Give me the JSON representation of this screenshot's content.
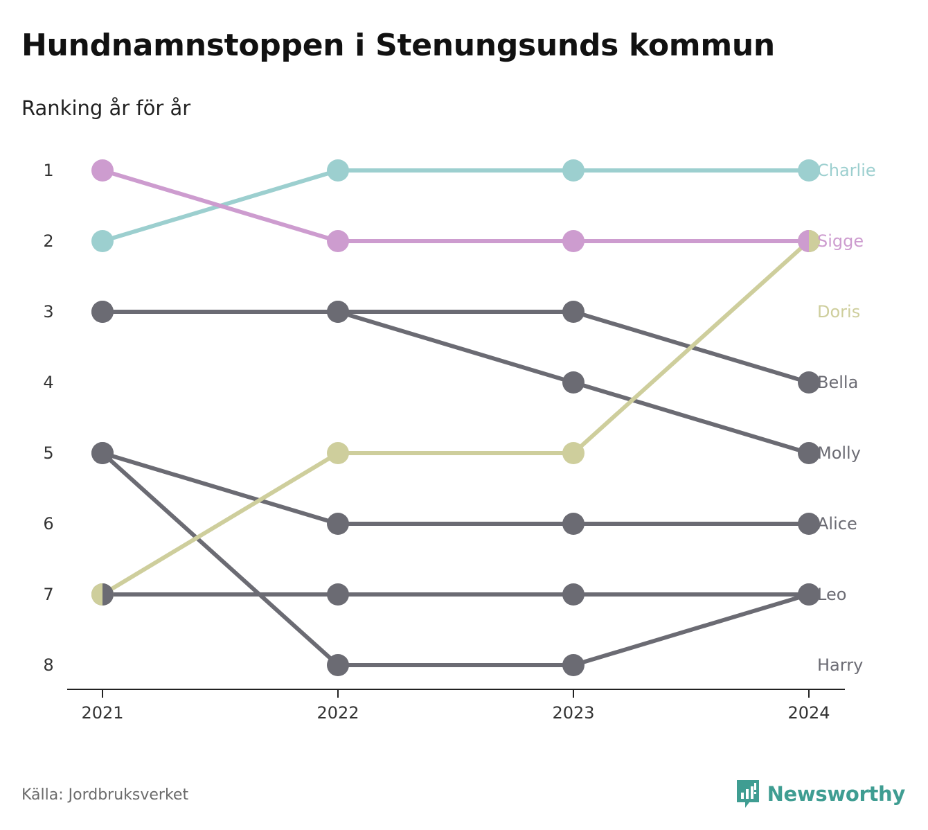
{
  "title": "Hundnamnstoppen i Stenungsunds kommun",
  "subtitle": "Ranking år för år",
  "source": "Källa: Jordbruksverket",
  "brand": "Newsworthy",
  "colors": {
    "Charlie": "#9ccfcf",
    "Sigge": "#cd9ccf",
    "Doris": "#cece9c",
    "other": "#6b6b73",
    "axis": "#222222",
    "brand": "#3f9d92"
  },
  "chart_data": {
    "type": "line",
    "x": [
      "2021",
      "2022",
      "2023",
      "2024"
    ],
    "y_ticks": [
      "1",
      "2",
      "3",
      "4",
      "5",
      "6",
      "7",
      "8"
    ],
    "ylim": [
      1,
      8
    ],
    "y_inverted": true,
    "series": [
      {
        "name": "Charlie",
        "values": [
          2,
          1,
          1,
          1
        ],
        "color": "#9ccfcf"
      },
      {
        "name": "Sigge",
        "values": [
          1,
          2,
          2,
          2
        ],
        "color": "#cd9ccf"
      },
      {
        "name": "Doris",
        "values": [
          7,
          5,
          5,
          2
        ],
        "color": "#cece9c"
      },
      {
        "name": "Bella",
        "values": [
          3,
          3,
          3,
          4
        ],
        "color": "#6b6b73"
      },
      {
        "name": "Molly",
        "values": [
          3,
          3,
          4,
          5
        ],
        "color": "#6b6b73"
      },
      {
        "name": "Alice",
        "values": [
          5,
          6,
          6,
          6
        ],
        "color": "#6b6b73"
      },
      {
        "name": "Leo",
        "values": [
          7,
          7,
          7,
          7
        ],
        "color": "#6b6b73"
      },
      {
        "name": "Harry",
        "values": [
          5,
          8,
          8,
          7
        ],
        "color": "#6b6b73"
      }
    ],
    "end_labels": [
      {
        "name": "Charlie",
        "rank": 1,
        "color": "#9ccfcf"
      },
      {
        "name": "Sigge",
        "rank": 2,
        "color": "#cd9ccf"
      },
      {
        "name": "Doris",
        "rank": 3,
        "color": "#cece9c"
      },
      {
        "name": "Bella",
        "rank": 4,
        "color": "#6b6b73"
      },
      {
        "name": "Molly",
        "rank": 5,
        "color": "#6b6b73"
      },
      {
        "name": "Alice",
        "rank": 6,
        "color": "#6b6b73"
      },
      {
        "name": "Leo",
        "rank": 7,
        "color": "#6b6b73"
      },
      {
        "name": "Harry",
        "rank": 8,
        "color": "#6b6b73"
      }
    ],
    "split_markers": [
      {
        "x": "2021",
        "rank": 7,
        "colors": [
          "#cece9c",
          "#6b6b73"
        ]
      },
      {
        "x": "2024",
        "rank": 2,
        "colors": [
          "#cd9ccf",
          "#cece9c"
        ]
      }
    ],
    "legend": "none",
    "grid": false
  }
}
